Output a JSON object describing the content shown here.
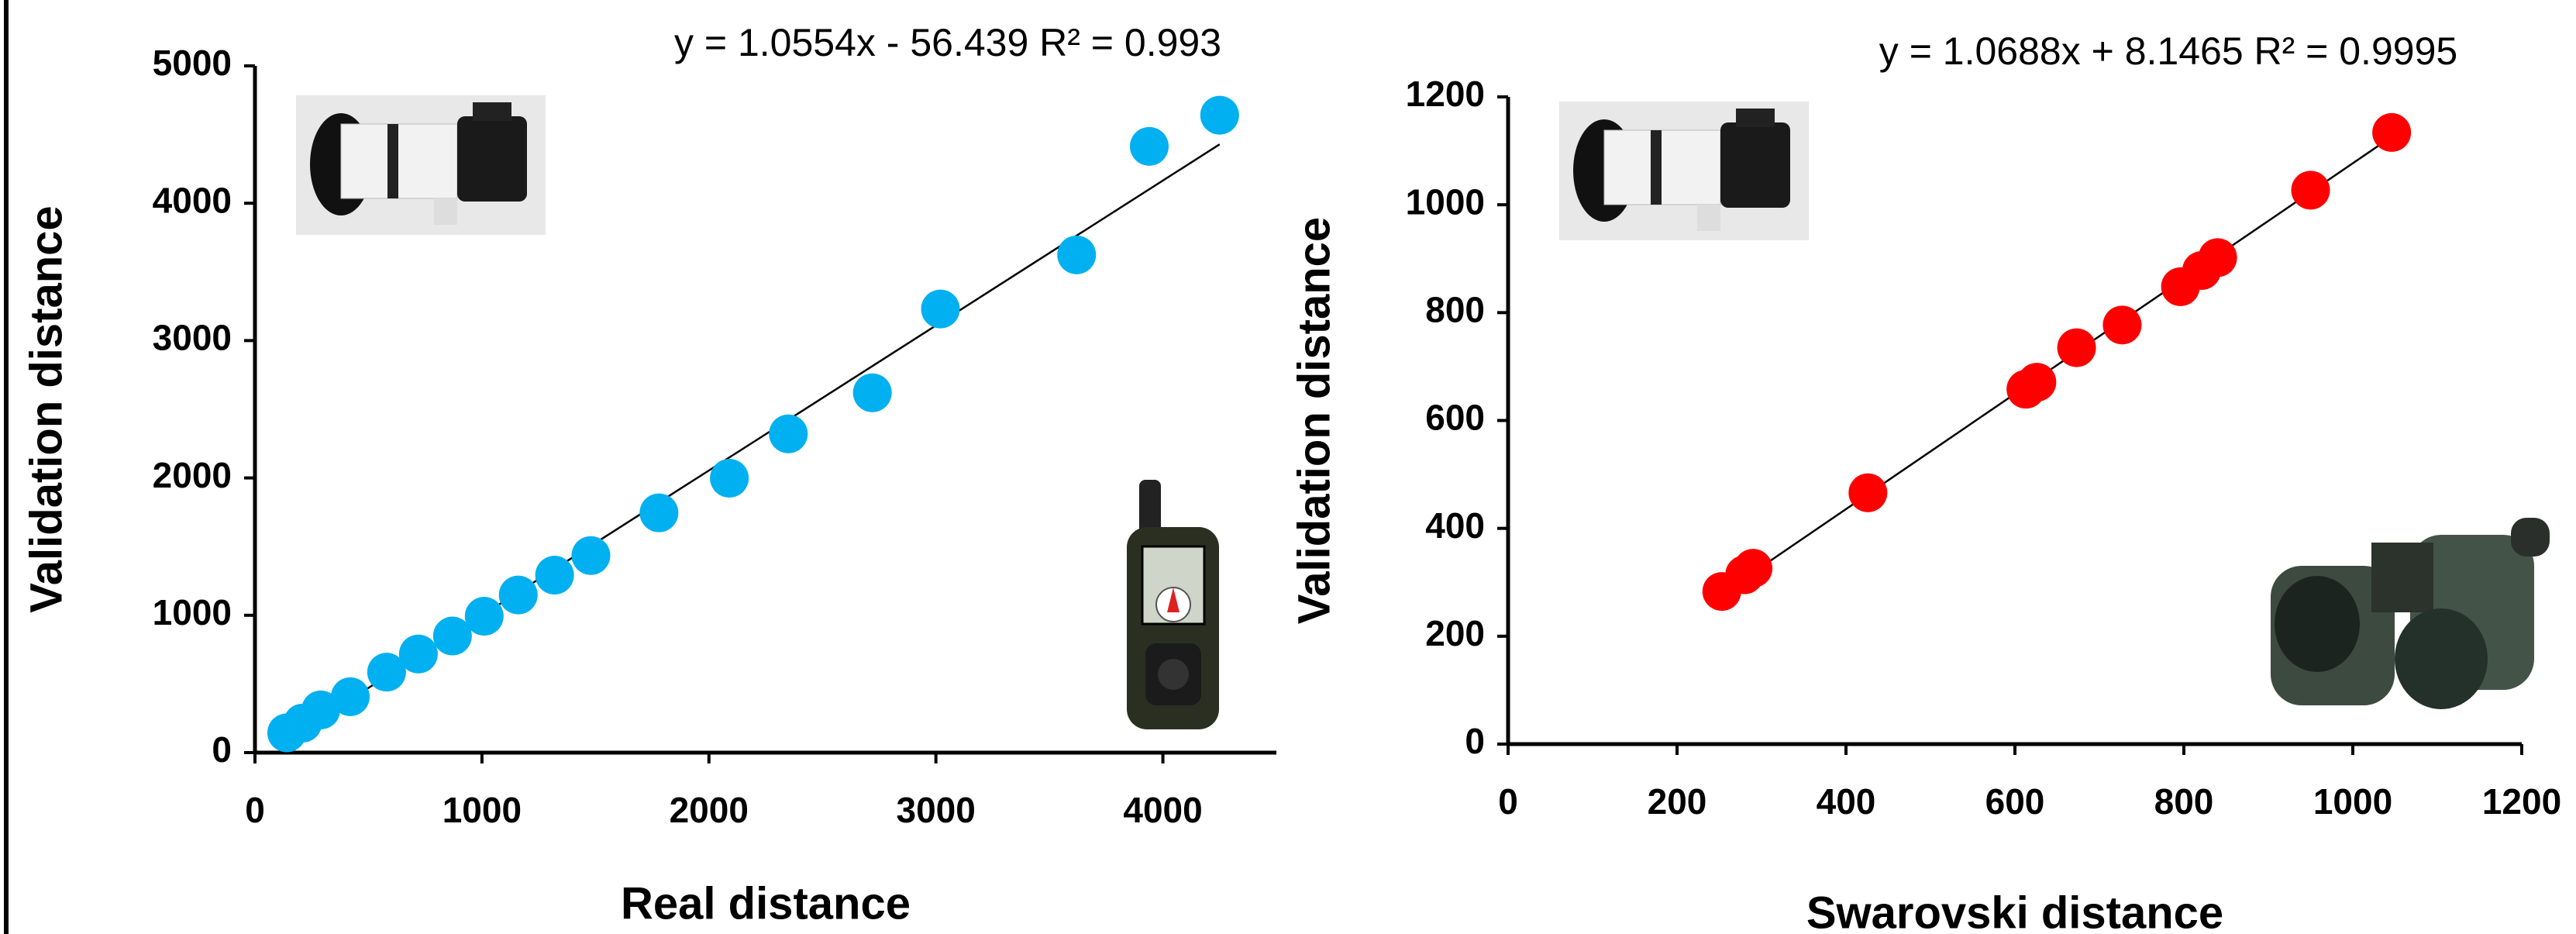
{
  "chart_data": [
    {
      "type": "scatter",
      "xlabel": "Real distance",
      "ylabel": "Validation distance",
      "color": "#00b0f0",
      "x": [
        140,
        210,
        290,
        420,
        580,
        720,
        870,
        1010,
        1160,
        1320,
        1480,
        1780,
        2090,
        2350,
        2720,
        3020,
        3620,
        3940,
        4250
      ],
      "values": [
        144,
        215,
        311,
        407,
        586,
        718,
        849,
        993,
        1148,
        1292,
        1435,
        1746,
        1998,
        2321,
        2620,
        3230,
        3624,
        4414,
        4641
      ],
      "xlim": [
        0,
        4500
      ],
      "ylim": [
        0,
        5000
      ],
      "xticks": [
        0,
        1000,
        2000,
        3000,
        4000
      ],
      "yticks": [
        0,
        1000,
        2000,
        3000,
        4000,
        5000
      ],
      "trendline": {
        "label": "y = 1.0554x - 56.439   R² = 0.993",
        "slope": 1.0554,
        "intercept": -56.439,
        "r2": 0.993
      }
    },
    {
      "type": "scatter",
      "xlabel": "Swarovski distance",
      "ylabel": "Validation distance",
      "color": "#ff0000",
      "x": [
        253,
        280,
        290,
        426,
        613,
        626,
        673,
        727,
        796,
        821,
        840,
        950,
        1046
      ],
      "values": [
        283,
        314,
        326,
        466,
        658,
        671,
        735,
        777,
        848,
        878,
        902,
        1027,
        1134
      ],
      "xlim": [
        0,
        1200
      ],
      "ylim": [
        0,
        1200
      ],
      "xticks": [
        0,
        200,
        400,
        600,
        800,
        1000,
        1200
      ],
      "yticks": [
        0,
        200,
        400,
        600,
        800,
        1000,
        1200
      ],
      "trendline": {
        "label": "y = 1.0688x + 8.1465 R² = 0.9995",
        "slope": 1.0688,
        "intercept": 8.1465,
        "r2": 0.9995
      }
    }
  ]
}
